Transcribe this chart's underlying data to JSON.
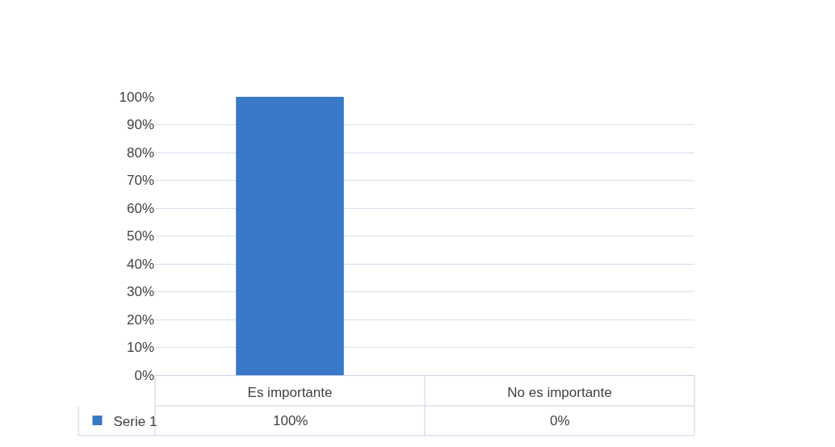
{
  "chart_data": {
    "type": "bar",
    "categories": [
      "Es importante",
      "No es importante"
    ],
    "series": [
      {
        "name": "Serie 1",
        "color": "#3a78c8",
        "values": [
          100,
          0
        ],
        "value_labels": [
          "100%",
          "0%"
        ]
      }
    ],
    "ylim": [
      0,
      100
    ],
    "yticks": [
      {
        "value": 0,
        "label": "0%"
      },
      {
        "value": 10,
        "label": "10%"
      },
      {
        "value": 20,
        "label": "20%"
      },
      {
        "value": 30,
        "label": "30%"
      },
      {
        "value": 40,
        "label": "40%"
      },
      {
        "value": 50,
        "label": "50%"
      },
      {
        "value": 60,
        "label": "60%"
      },
      {
        "value": 70,
        "label": "70%"
      },
      {
        "value": 80,
        "label": "80%"
      },
      {
        "value": 90,
        "label": "90%"
      },
      {
        "value": 100,
        "label": "100%"
      }
    ],
    "grid": "y",
    "legend": "bottom left"
  }
}
